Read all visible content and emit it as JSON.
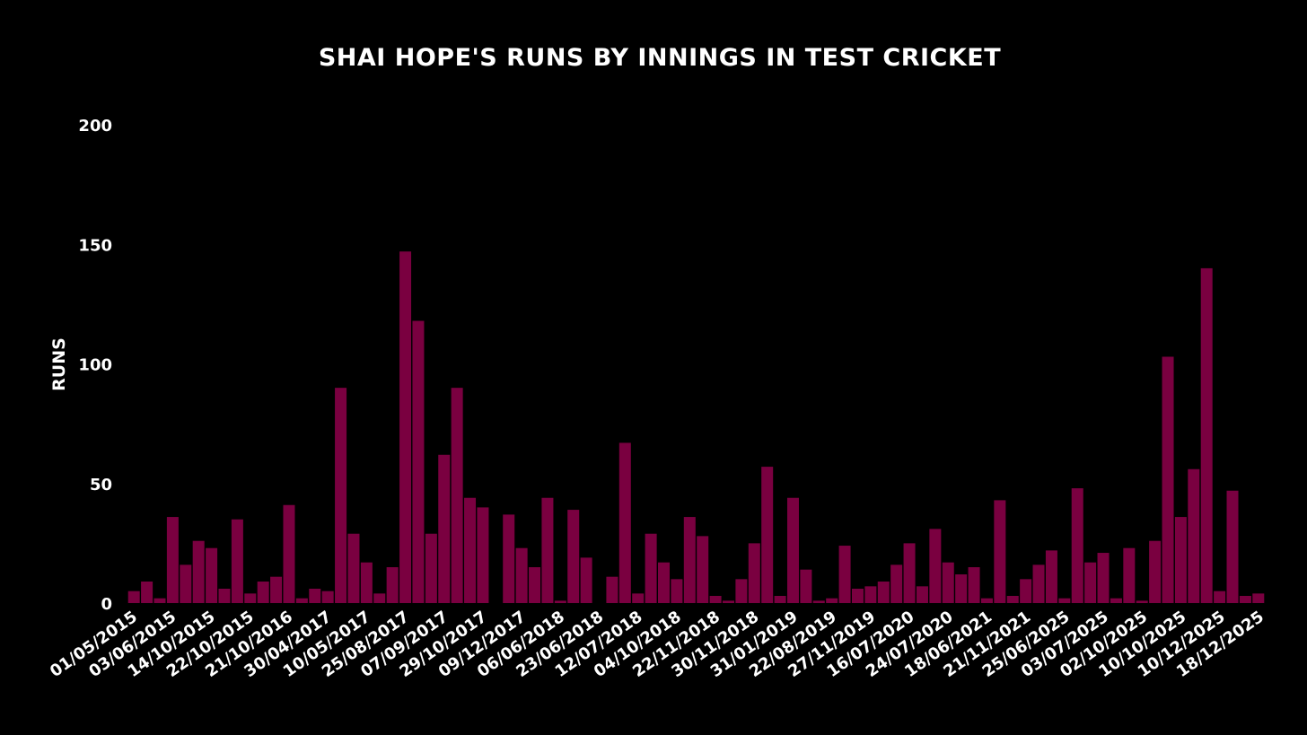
{
  "chart_data": {
    "type": "bar",
    "title": "SHAI HOPE'S RUNS BY INNINGS IN TEST CRICKET",
    "xlabel": "",
    "ylabel": "RUNS",
    "ylim": [
      0,
      200
    ],
    "yticks": [
      0,
      50,
      100,
      150,
      200
    ],
    "grid": false,
    "legend": "none",
    "bar_color": "#7a0040",
    "background": "#000000",
    "text_color": "#ffffff",
    "xtick_labels": [
      "01/05/2015",
      "03/06/2015",
      "14/10/2015",
      "22/10/2015",
      "21/10/2016",
      "30/04/2017",
      "10/05/2017",
      "25/08/2017",
      "07/09/2017",
      "29/10/2017",
      "09/12/2017",
      "06/06/2018",
      "23/06/2018",
      "12/07/2018",
      "04/10/2018",
      "22/11/2018",
      "30/11/2018",
      "31/01/2019",
      "22/08/2019",
      "27/11/2019",
      "16/07/2020",
      "24/07/2020",
      "18/06/2021",
      "21/11/2021",
      "25/06/2025",
      "03/07/2025",
      "02/10/2025",
      "10/10/2025",
      "10/12/2025",
      "18/12/2025"
    ],
    "values": [
      5,
      9,
      2,
      36,
      16,
      26,
      23,
      6,
      35,
      4,
      9,
      11,
      41,
      2,
      6,
      5,
      90,
      29,
      17,
      4,
      15,
      147,
      118,
      29,
      62,
      90,
      44,
      40,
      0,
      37,
      23,
      15,
      44,
      1,
      39,
      19,
      0,
      11,
      67,
      4,
      29,
      17,
      10,
      36,
      28,
      3,
      1,
      10,
      25,
      57,
      3,
      44,
      14,
      1,
      2,
      24,
      6,
      7,
      9,
      16,
      25,
      7,
      31,
      17,
      12,
      15,
      2,
      43,
      3,
      10,
      16,
      22,
      2,
      48,
      17,
      21,
      2,
      23,
      1,
      26,
      103,
      36,
      56,
      140,
      5,
      47,
      3,
      4
    ]
  }
}
